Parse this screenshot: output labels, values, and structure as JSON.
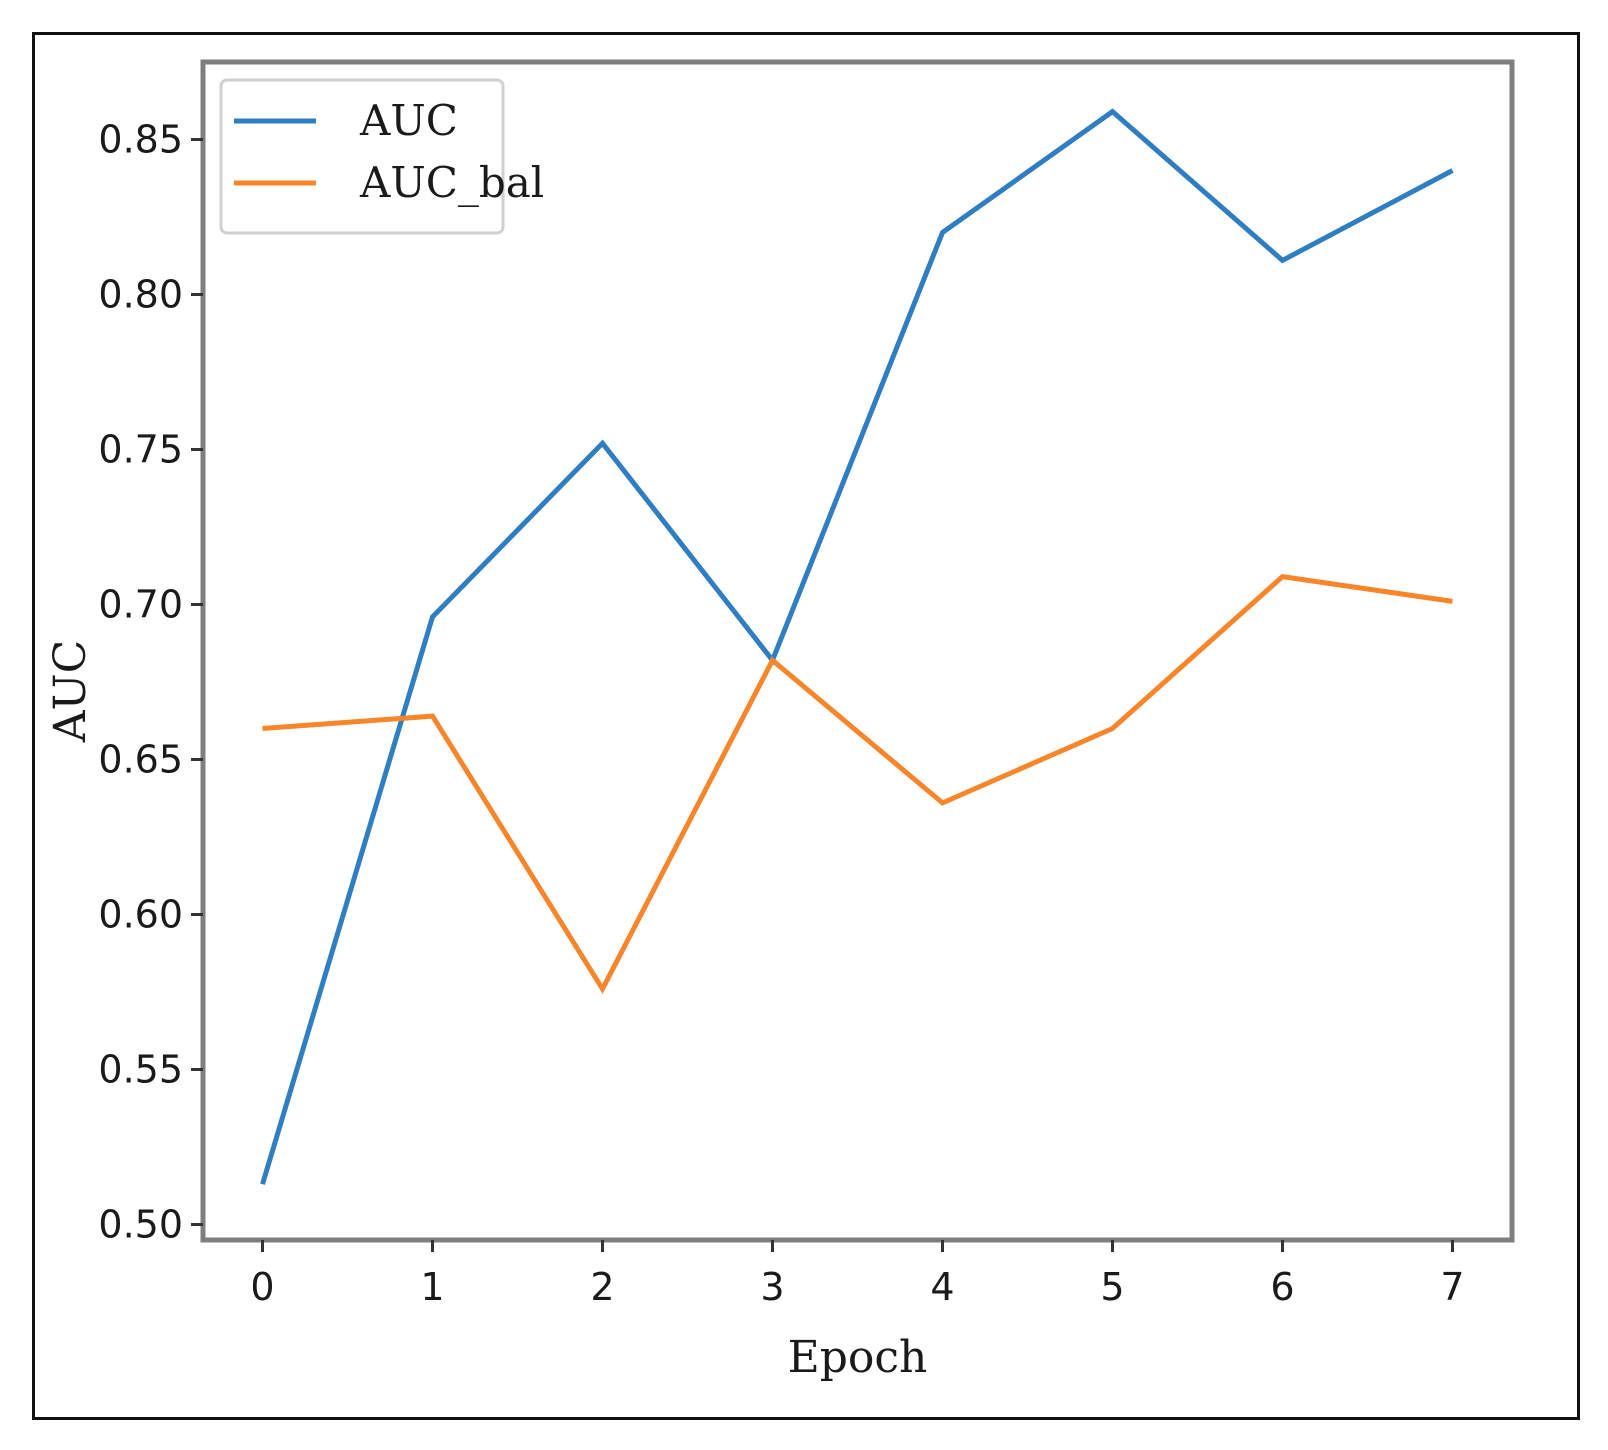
{
  "chart_data": {
    "type": "line",
    "title": "",
    "xlabel": "Epoch",
    "ylabel": "AUC",
    "x": [
      0,
      1,
      2,
      3,
      4,
      5,
      6,
      7
    ],
    "xticks": [
      "0",
      "1",
      "2",
      "3",
      "4",
      "5",
      "6",
      "7"
    ],
    "yticks": [
      "0.50",
      "0.55",
      "0.60",
      "0.65",
      "0.70",
      "0.75",
      "0.80",
      "0.85"
    ],
    "xlim": [
      -0.35,
      7.35
    ],
    "ylim": [
      0.495,
      0.875
    ],
    "grid": false,
    "legend_position": "top-left",
    "series": [
      {
        "name": "AUC",
        "color": "#2f7ec1",
        "values": [
          0.513,
          0.696,
          0.752,
          0.682,
          0.82,
          0.859,
          0.811,
          0.84
        ]
      },
      {
        "name": "AUC_bal",
        "color": "#f7852a",
        "values": [
          0.66,
          0.664,
          0.576,
          0.682,
          0.636,
          0.66,
          0.709,
          0.701
        ]
      }
    ]
  }
}
